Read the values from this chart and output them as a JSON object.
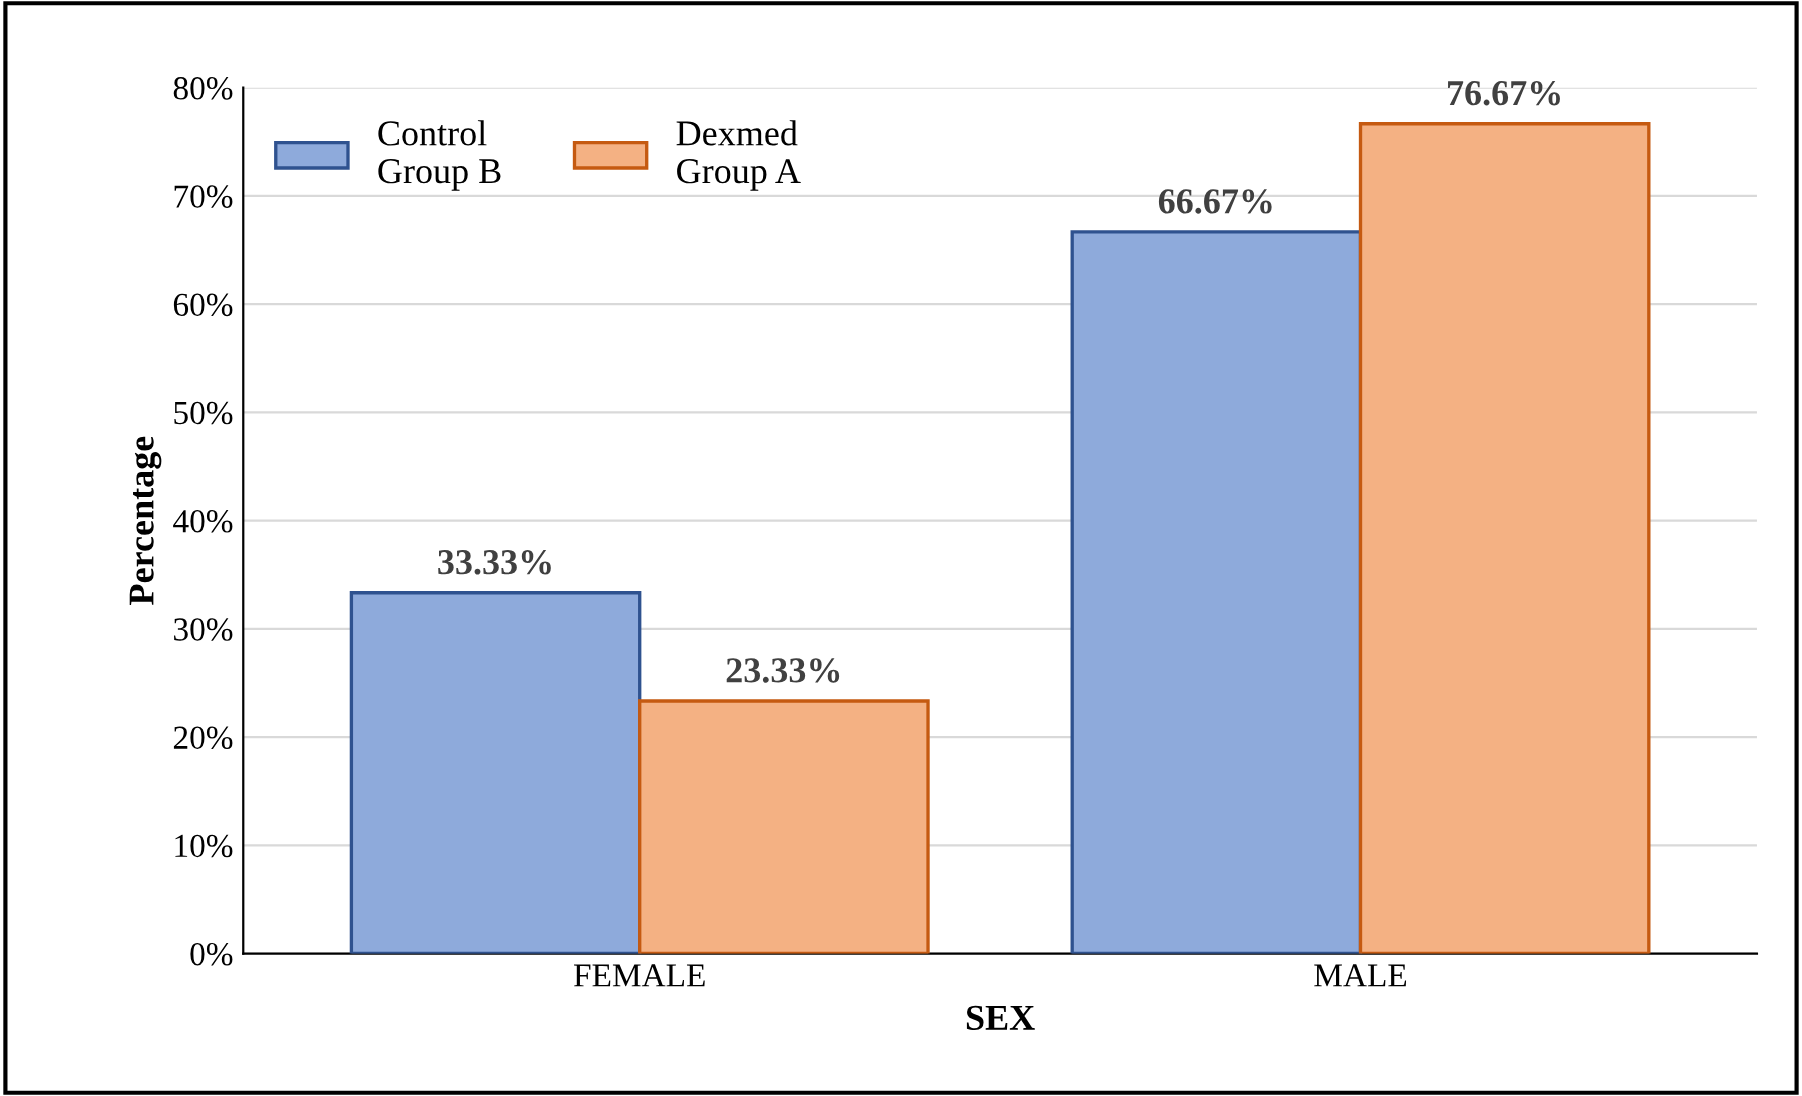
{
  "chart_data": {
    "type": "bar",
    "xlabel": "SEX",
    "ylabel": "Percentage",
    "categories": [
      "FEMALE",
      "MALE"
    ],
    "series": [
      {
        "name": "Control\nGroup B",
        "color": "#8eaadb",
        "values": [
          33.33,
          66.67
        ],
        "value_labels": [
          "33.33%",
          "66.67%"
        ]
      },
      {
        "name": "Dexmed\nGroup A",
        "color": "#f4b183",
        "values": [
          23.33,
          76.67
        ],
        "value_labels": [
          "23.33%",
          "76.67%"
        ]
      }
    ],
    "ylim": [
      0,
      80
    ],
    "yticks": [
      {
        "value": 0,
        "label": "0%"
      },
      {
        "value": 10,
        "label": "10%"
      },
      {
        "value": 20,
        "label": "20%"
      },
      {
        "value": 30,
        "label": "30%"
      },
      {
        "value": 40,
        "label": "40%"
      },
      {
        "value": 50,
        "label": "50%"
      },
      {
        "value": 60,
        "label": "60%"
      },
      {
        "value": 70,
        "label": "70%"
      },
      {
        "value": 80,
        "label": "80%"
      }
    ],
    "grid": "y",
    "legend": "top left"
  }
}
